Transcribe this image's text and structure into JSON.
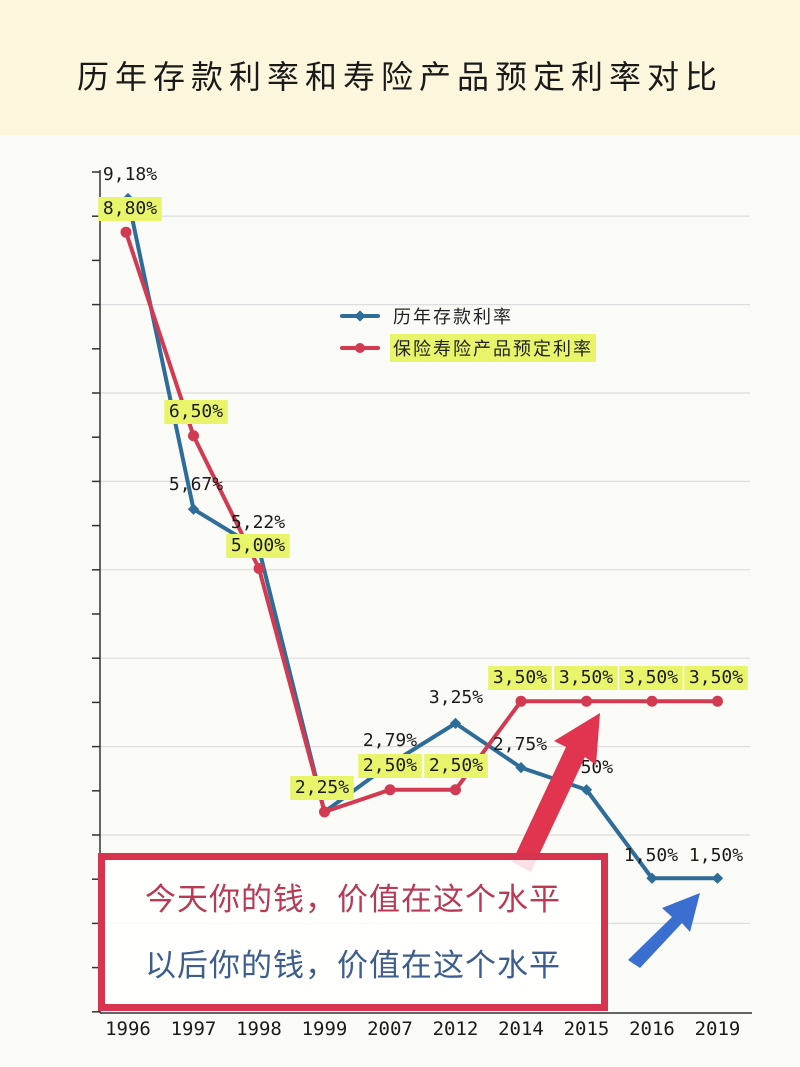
{
  "title": "历年存款利率和寿险产品预定利率对比",
  "legend": {
    "deposit_label": "历年存款利率",
    "insurance_label": "保险寿险产品预定利率"
  },
  "callout": {
    "line1": "今天你的钱，价值在这个水平",
    "line2": "以后你的钱，价值在这个水平"
  },
  "colors": {
    "deposit": "#2f6d99",
    "insurance": "#d23a52",
    "highlight": "#e8f56a",
    "red_arrow": "#e0344f",
    "blue_arrow": "#3a6fd0",
    "title_band": "#fbf6dc"
  },
  "chart_data": {
    "type": "line",
    "title": "历年存款利率和寿险产品预定利率对比",
    "xlabel": "",
    "ylabel": "",
    "categories": [
      "1996",
      "1997",
      "1998",
      "1999",
      "2007",
      "2012",
      "2014",
      "2015",
      "2016",
      "2019"
    ],
    "series": [
      {
        "name": "历年存款利率",
        "values": [
          9.18,
          5.67,
          5.22,
          2.25,
          2.79,
          3.25,
          2.75,
          2.5,
          1.5,
          1.5
        ],
        "labels": [
          "9,18%",
          "5,67%",
          "5,22%",
          "",
          "2,79%",
          "3,25%",
          "2,75%",
          "2,50%",
          "1,50%",
          "1,50%"
        ],
        "color": "#2f6d99",
        "marker": "diamond"
      },
      {
        "name": "保险寿险产品预定利率",
        "values": [
          8.8,
          6.5,
          5.0,
          2.25,
          2.5,
          2.5,
          3.5,
          3.5,
          3.5,
          3.5
        ],
        "labels": [
          "8,80%",
          "6,50%",
          "5,00%",
          "2,25%",
          "2,50%",
          "2,50%",
          "3,50%",
          "3,50%",
          "3,50%",
          "3,50%"
        ],
        "color": "#d23a52",
        "marker": "circle",
        "label_highlight": true
      }
    ],
    "ylim": [
      0,
      9.5
    ],
    "grid": true,
    "legend_position": "upper center",
    "annotations": [
      "今天你的钱，价值在这个水平",
      "以后你的钱，价值在这个水平"
    ]
  }
}
